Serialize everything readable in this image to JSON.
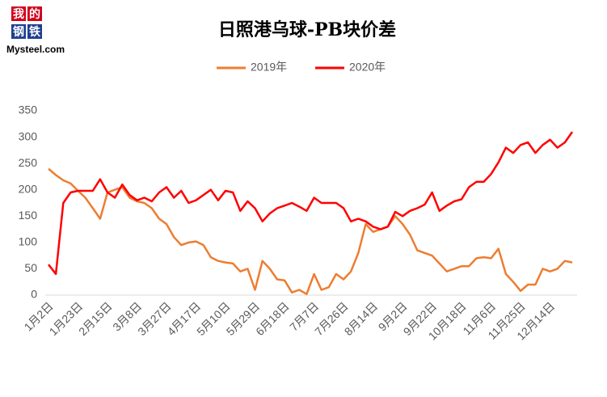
{
  "logo": {
    "chars": [
      "我",
      "的",
      "钢",
      "铁"
    ],
    "text": "Mysteel.com"
  },
  "chart_data": {
    "type": "line",
    "title": "日照港乌球-PB块价差",
    "categories": [
      "1月2日",
      null,
      null,
      null,
      "1月23日",
      null,
      null,
      null,
      "2月15日",
      null,
      null,
      null,
      "3月8日",
      null,
      null,
      null,
      "3月27日",
      null,
      null,
      null,
      "4月17日",
      null,
      null,
      null,
      "5月10日",
      null,
      null,
      null,
      "5月29日",
      null,
      null,
      null,
      "6月18日",
      null,
      null,
      null,
      "7月7日",
      null,
      null,
      null,
      "7月26日",
      null,
      null,
      null,
      "8月14日",
      null,
      null,
      null,
      "9月2日",
      null,
      null,
      null,
      "9月22日",
      null,
      null,
      null,
      "10月18日",
      null,
      null,
      null,
      "11月6日",
      null,
      null,
      null,
      "11月25日",
      null,
      null,
      null,
      "12月14日",
      null,
      null,
      null
    ],
    "series": [
      {
        "name": "2019年",
        "color": "#ed7d31",
        "values": [
          240,
          228,
          218,
          212,
          198,
          185,
          165,
          145,
          195,
          200,
          205,
          185,
          178,
          175,
          165,
          145,
          135,
          110,
          95,
          100,
          102,
          95,
          72,
          65,
          62,
          60,
          45,
          50,
          10,
          65,
          50,
          30,
          28,
          5,
          10,
          2,
          40,
          10,
          15,
          40,
          30,
          45,
          80,
          135,
          120,
          125,
          130,
          150,
          135,
          115,
          85,
          80,
          75,
          60,
          45,
          50,
          55,
          55,
          70,
          72,
          70,
          88,
          40,
          25,
          8,
          20,
          20,
          50,
          45,
          50,
          65,
          62
        ]
      },
      {
        "name": "2020年",
        "color": "#ff0000",
        "values": [
          58,
          40,
          175,
          195,
          198,
          198,
          198,
          220,
          195,
          185,
          210,
          190,
          180,
          185,
          178,
          195,
          205,
          185,
          198,
          175,
          180,
          190,
          200,
          180,
          198,
          195,
          160,
          178,
          165,
          140,
          155,
          165,
          170,
          175,
          168,
          160,
          185,
          175,
          175,
          175,
          165,
          140,
          145,
          140,
          130,
          125,
          130,
          158,
          150,
          160,
          165,
          172,
          195,
          160,
          170,
          178,
          182,
          205,
          215,
          215,
          230,
          252,
          280,
          270,
          285,
          290,
          270,
          285,
          295,
          280,
          290,
          310
        ]
      }
    ],
    "ylim": [
      0,
      350
    ],
    "yticks": [
      0,
      50,
      100,
      150,
      200,
      250,
      300,
      350
    ],
    "grid": false
  }
}
